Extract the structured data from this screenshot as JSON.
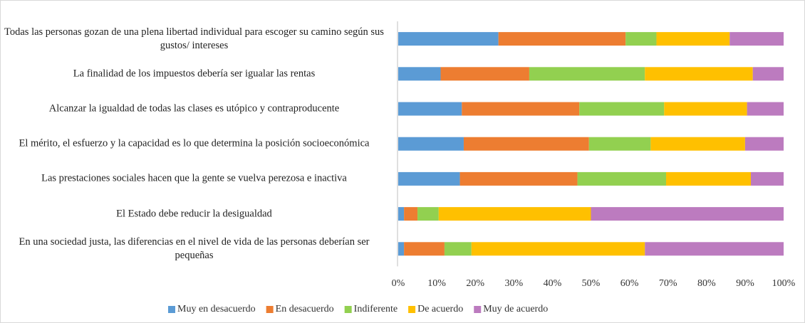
{
  "chart_data": {
    "type": "stacked-bar-horizontal",
    "categories": [
      "Todas las personas gozan de una plena libertad individual para escoger su camino según sus gustos/ intereses",
      "La finalidad de los impuestos debería ser igualar las rentas",
      "Alcanzar la igualdad de todas las clases es utópico y contraproducente",
      "El mérito, el esfuerzo y la capacidad es lo que determina la posición socioeconómica",
      "Las prestaciones sociales hacen que la gente se vuelva perezosa e inactiva",
      "El Estado debe reducir la desigualdad",
      "En una sociedad justa, las diferencias en el nivel de vida de las personas deberían ser pequeñas"
    ],
    "series": [
      {
        "name": "Muy en desacuerdo",
        "color": "#5b9bd5",
        "values": [
          26,
          11,
          16.5,
          17,
          16,
          1.5,
          1.5
        ]
      },
      {
        "name": "En desacuerdo",
        "color": "#ed7d31",
        "values": [
          33,
          23,
          30.5,
          32.5,
          30.5,
          3.5,
          10.5
        ]
      },
      {
        "name": "Indiferente",
        "color": "#92d050",
        "values": [
          8,
          30,
          22,
          16,
          23,
          5.5,
          7
        ]
      },
      {
        "name": "De acuerdo",
        "color": "#ffc000",
        "values": [
          19,
          28,
          21.5,
          24.5,
          22,
          39.5,
          45
        ]
      },
      {
        "name": "Muy de acuerdo",
        "color": "#bc7bbf",
        "values": [
          14,
          8,
          9.5,
          10,
          8.5,
          50,
          36
        ]
      }
    ],
    "xlim": [
      0,
      100
    ],
    "xticks": [
      {
        "value": 0,
        "label": "0%"
      },
      {
        "value": 10,
        "label": "10%"
      },
      {
        "value": 20,
        "label": "20%"
      },
      {
        "value": 30,
        "label": "30%"
      },
      {
        "value": 40,
        "label": "40%"
      },
      {
        "value": 50,
        "label": "50%"
      },
      {
        "value": 60,
        "label": "60%"
      },
      {
        "value": 70,
        "label": "70%"
      },
      {
        "value": 80,
        "label": "80%"
      },
      {
        "value": 90,
        "label": "90%"
      },
      {
        "value": 100,
        "label": "100%"
      }
    ],
    "legend": "bottom",
    "grid": false
  }
}
